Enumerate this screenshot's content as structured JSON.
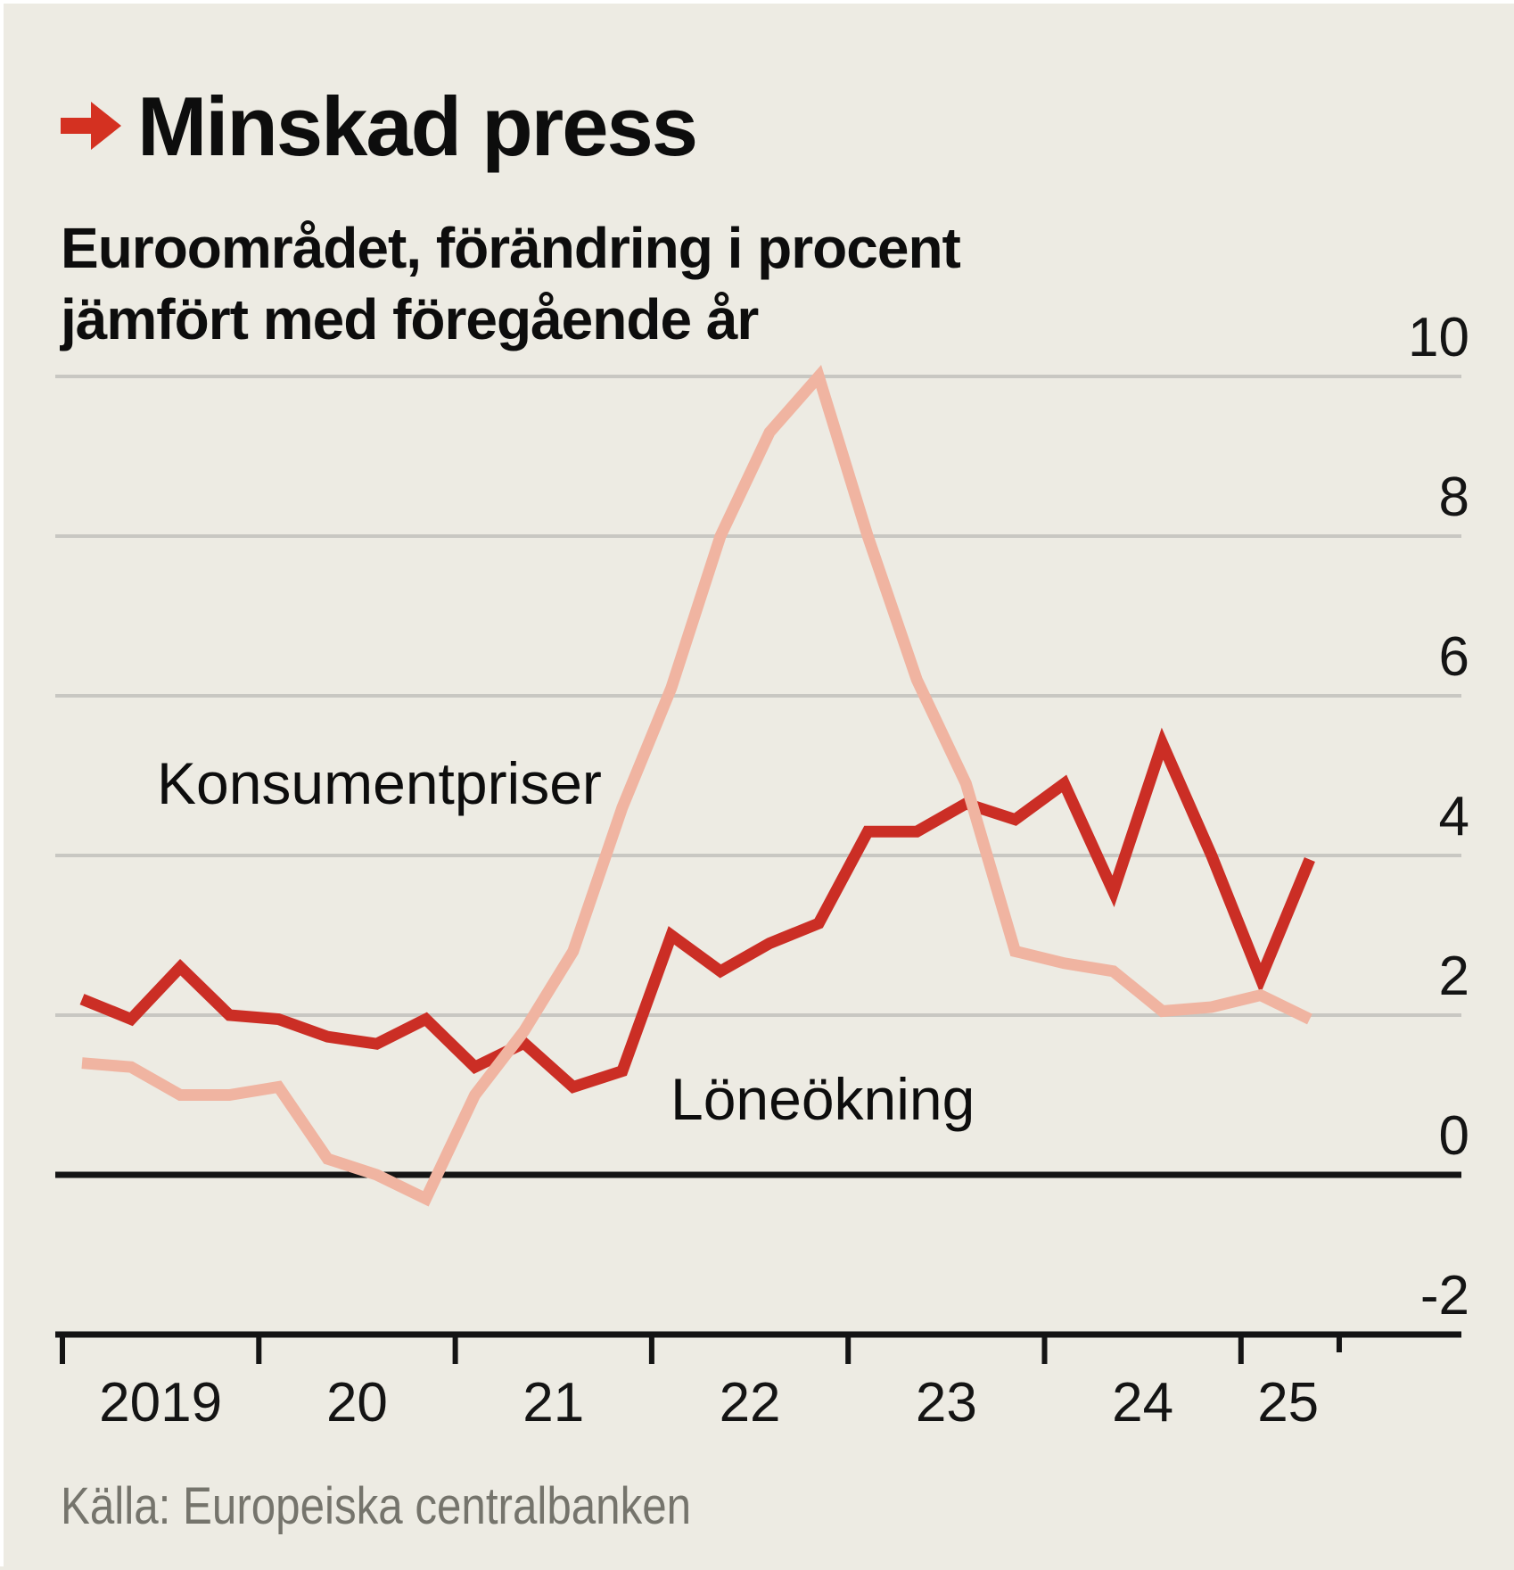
{
  "header": {
    "title": "Minskad press",
    "arrow_color": "#d43121"
  },
  "subtitle": {
    "line1": "Euroområdet, förändring i procent",
    "line2": "jämfört med föregående år"
  },
  "series_labels": {
    "konsumentpriser": "Konsumentpriser",
    "loneokning": "Löneökning"
  },
  "source": "Källa: Europeiska centralbanken",
  "colors": {
    "background": "#edebe3",
    "gridline": "#c8c7c2",
    "axis": "#141414",
    "wage_line": "#cb2e25",
    "price_line": "#f0b4a1"
  },
  "chart_data": {
    "type": "line",
    "title": "Minskad press",
    "subtitle": "Euroområdet, förändring i procent jämfört med föregående år",
    "source": "Källa: Europeiska centralbanken",
    "x_start": 2019.1,
    "x_step": 0.25,
    "series": [
      {
        "key": "loneokning",
        "name": "Löneökning",
        "color": "#cb2e25",
        "values": [
          2.2,
          1.95,
          2.6,
          2.0,
          1.95,
          1.73,
          1.64,
          1.95,
          1.35,
          1.65,
          1.1,
          1.3,
          3.0,
          2.55,
          2.9,
          3.15,
          4.3,
          4.3,
          4.65,
          4.45,
          4.9,
          3.55,
          5.4,
          4.0,
          2.46,
          3.95
        ]
      },
      {
        "key": "konsumentpriser",
        "name": "Konsumentpriser",
        "color": "#f0b4a1",
        "values": [
          1.4,
          1.35,
          1.0,
          1.0,
          1.1,
          0.2,
          0.0,
          -0.3,
          1.0,
          1.8,
          2.8,
          4.6,
          6.1,
          8.0,
          9.3,
          10.0,
          8.0,
          6.2,
          4.9,
          2.8,
          2.65,
          2.55,
          2.05,
          2.1,
          2.25,
          1.95
        ]
      }
    ],
    "ylim": [
      -2,
      10
    ],
    "y_ticks": [
      10,
      8,
      6,
      4,
      2,
      0,
      -2
    ],
    "x_ticks": [
      2019,
      2020,
      2021,
      2022,
      2023,
      2024,
      2025
    ],
    "x_end_tick": 2025.5,
    "x_tick_labels": [
      "2019",
      "20",
      "21",
      "22",
      "23",
      "24",
      "25"
    ],
    "x_tick_label_positions": [
      2019.5,
      2020.5,
      2021.5,
      2022.5,
      2023.5,
      2024.5,
      2025.24
    ],
    "grid": true,
    "legend_position": "inline-labels"
  }
}
